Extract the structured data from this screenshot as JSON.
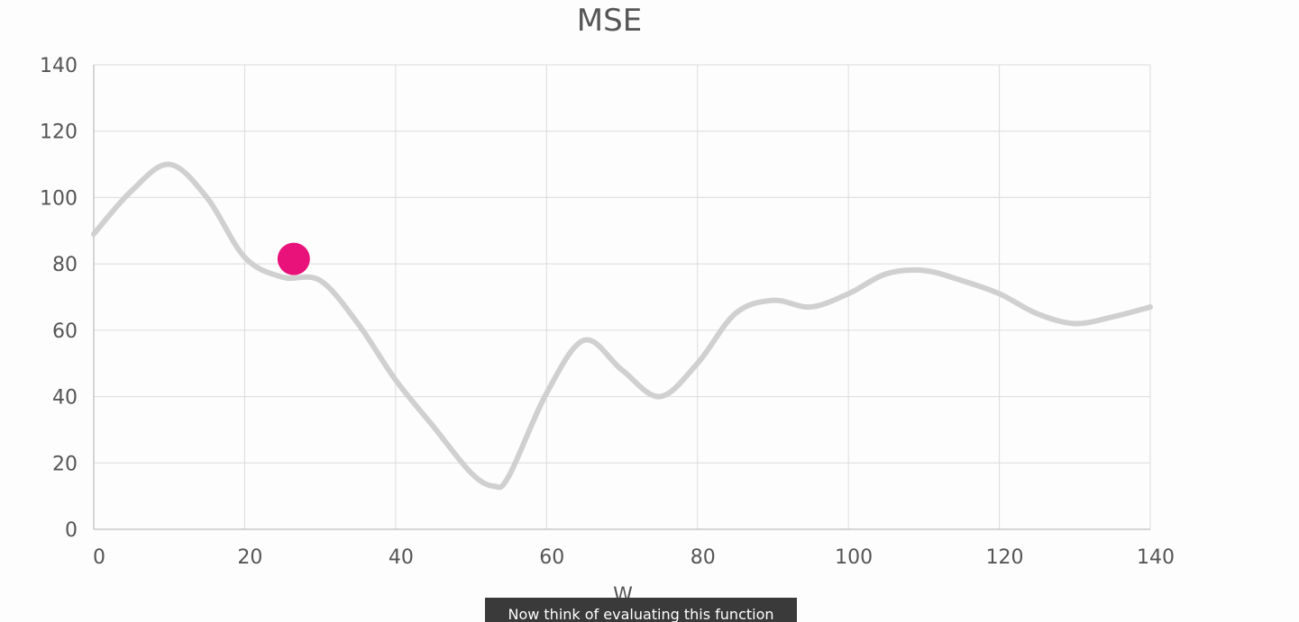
{
  "chart_data": {
    "type": "line",
    "title": "MSE",
    "xlabel": "W",
    "ylabel": "",
    "xlim": [
      0,
      140
    ],
    "ylim": [
      0,
      140
    ],
    "xticks": [
      0,
      20,
      40,
      60,
      80,
      100,
      120,
      140
    ],
    "yticks": [
      0,
      20,
      40,
      60,
      80,
      100,
      120,
      140
    ],
    "grid": true,
    "series": [
      {
        "color": "#d0d0d0",
        "x": [
          0,
          5,
          10,
          15,
          20,
          25,
          30,
          35,
          40,
          45,
          50,
          53,
          55,
          60,
          65,
          70,
          75,
          80,
          85,
          90,
          95,
          100,
          105,
          110,
          115,
          120,
          125,
          130,
          135,
          140
        ],
        "y": [
          89,
          102,
          110,
          100,
          82,
          76,
          75,
          62,
          45,
          31,
          17,
          13,
          16,
          41,
          57,
          48,
          40,
          50,
          65,
          69,
          67,
          71,
          77,
          78,
          75,
          71,
          65,
          62,
          64,
          67
        ]
      }
    ],
    "marker": {
      "x": 26.5,
      "y": 81.5,
      "color": "#e8127a"
    }
  },
  "caption": "Now think of evaluating this function"
}
